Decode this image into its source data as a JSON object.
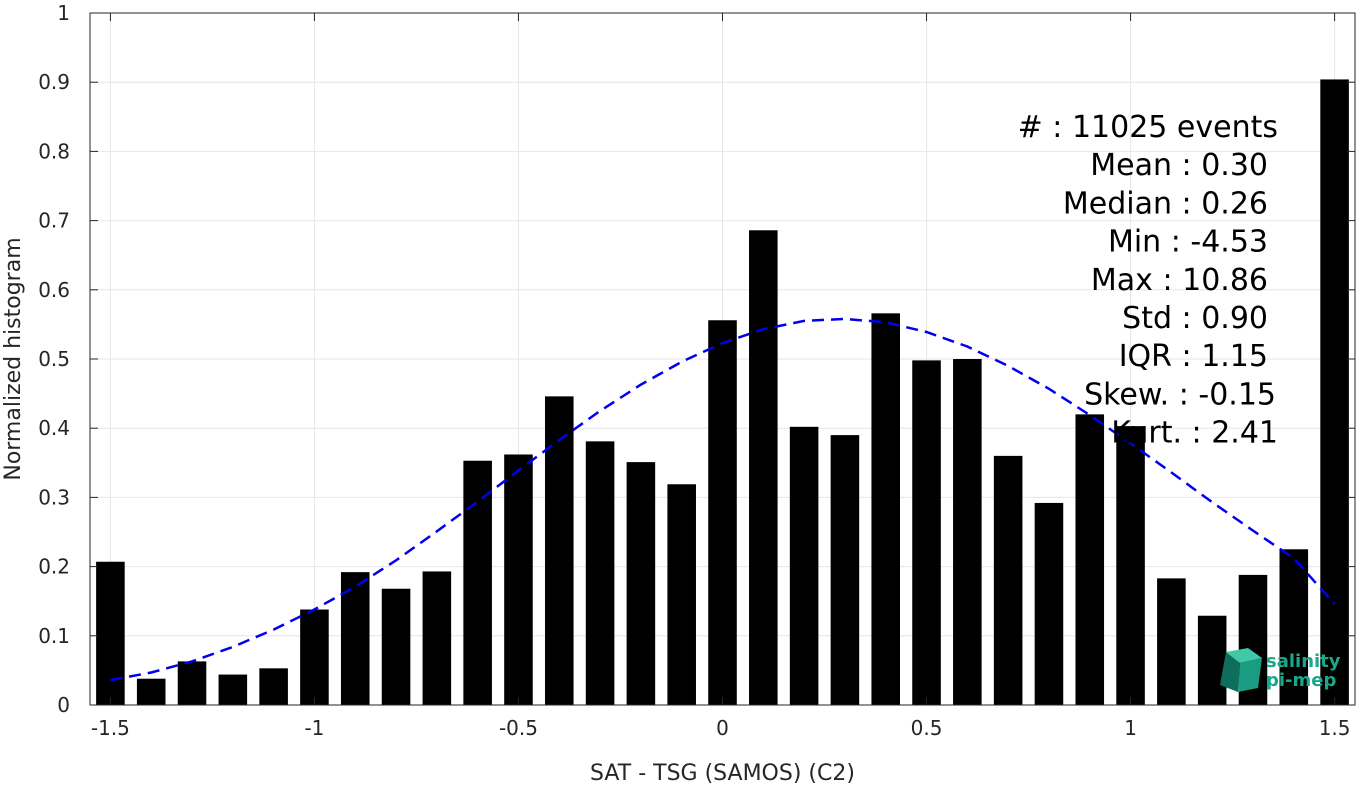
{
  "chart_data": {
    "type": "bar",
    "title": "",
    "xlabel": "SAT - TSG (SAMOS) (C2)",
    "ylabel": "Normalized histogram",
    "xlim": [
      -1.55,
      1.55
    ],
    "ylim": [
      0,
      1
    ],
    "grid": true,
    "bar_width": 0.07,
    "x_ticks": [
      {
        "value": -1.5,
        "label": "-1.5"
      },
      {
        "value": -1,
        "label": "-1"
      },
      {
        "value": -0.5,
        "label": "-0.5"
      },
      {
        "value": 0,
        "label": "0"
      },
      {
        "value": 0.5,
        "label": "0.5"
      },
      {
        "value": 1,
        "label": "1"
      },
      {
        "value": 1.5,
        "label": "1.5"
      }
    ],
    "y_ticks": [
      {
        "value": 0,
        "label": "0"
      },
      {
        "value": 0.1,
        "label": "0.1"
      },
      {
        "value": 0.2,
        "label": "0.2"
      },
      {
        "value": 0.3,
        "label": "0.3"
      },
      {
        "value": 0.4,
        "label": "0.4"
      },
      {
        "value": 0.5,
        "label": "0.5"
      },
      {
        "value": 0.6,
        "label": "0.6"
      },
      {
        "value": 0.7,
        "label": "0.7"
      },
      {
        "value": 0.8,
        "label": "0.8"
      },
      {
        "value": 0.9,
        "label": "0.9"
      },
      {
        "value": 1,
        "label": "1"
      }
    ],
    "bars": {
      "x": [
        -1.5,
        -1.4,
        -1.3,
        -1.2,
        -1.1,
        -1.0,
        -0.9,
        -0.8,
        -0.7,
        -0.6,
        -0.5,
        -0.4,
        -0.3,
        -0.2,
        -0.1,
        0.0,
        0.1,
        0.2,
        0.3,
        0.4,
        0.5,
        0.6,
        0.7,
        0.8,
        0.9,
        1.0,
        1.1,
        1.2,
        1.3,
        1.4,
        1.5
      ],
      "values": [
        0.207,
        0.038,
        0.063,
        0.044,
        0.053,
        0.138,
        0.192,
        0.168,
        0.193,
        0.353,
        0.362,
        0.446,
        0.381,
        0.351,
        0.319,
        0.556,
        0.686,
        0.402,
        0.39,
        0.566,
        0.498,
        0.5,
        0.36,
        0.292,
        0.42,
        0.403,
        0.183,
        0.129,
        0.188,
        0.225,
        0.904
      ],
      "color": "#000000"
    },
    "fit": {
      "style": "dashed",
      "color": "#0000ee",
      "x": [
        -1.5,
        -1.4,
        -1.3,
        -1.2,
        -1.1,
        -1.0,
        -0.9,
        -0.8,
        -0.7,
        -0.6,
        -0.5,
        -0.4,
        -0.3,
        -0.2,
        -0.1,
        0.0,
        0.1,
        0.2,
        0.3,
        0.4,
        0.5,
        0.6,
        0.7,
        0.8,
        0.9,
        1.0,
        1.1,
        1.2,
        1.3,
        1.4,
        1.5
      ],
      "y": [
        0.036,
        0.047,
        0.063,
        0.084,
        0.109,
        0.138,
        0.171,
        0.209,
        0.251,
        0.294,
        0.339,
        0.383,
        0.425,
        0.463,
        0.496,
        0.523,
        0.543,
        0.555,
        0.558,
        0.553,
        0.539,
        0.518,
        0.49,
        0.457,
        0.419,
        0.378,
        0.336,
        0.293,
        0.252,
        0.212,
        0.146
      ]
    },
    "stats": [
      {
        "label": "#  : 11025 events"
      },
      {
        "label": "Mean : 0.30"
      },
      {
        "label": "Median : 0.26"
      },
      {
        "label": "Min : -4.53"
      },
      {
        "label": "Max : 10.86"
      },
      {
        "label": "Std : 0.90"
      },
      {
        "label": "IQR : 1.15"
      },
      {
        "label": "Skew. : -0.15"
      },
      {
        "label": "Kurt. : 2.41"
      }
    ]
  },
  "logo": {
    "line1": "salinity",
    "line2": "pi-mep",
    "color": "#1aa889"
  }
}
